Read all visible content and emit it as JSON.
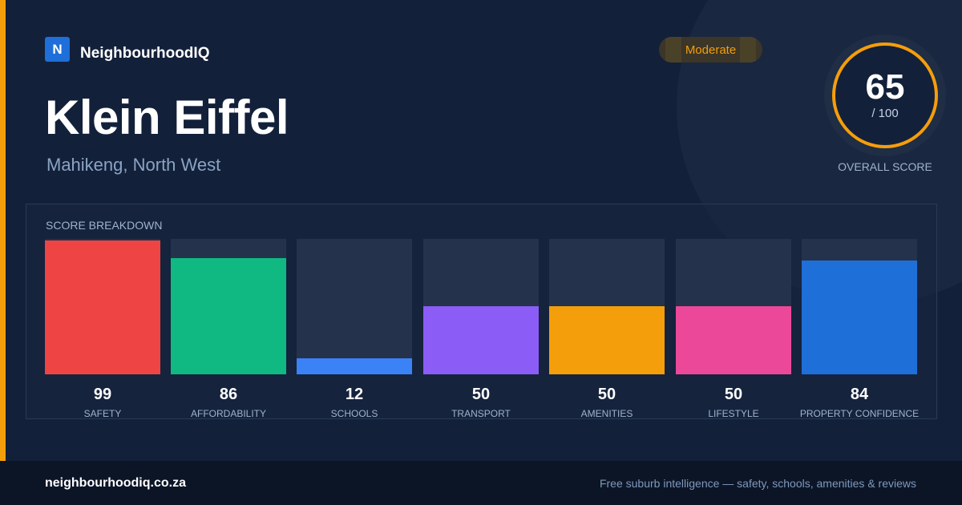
{
  "brand": {
    "logo_letter": "N",
    "name": "NeighbourhoodIQ",
    "accent_color": "#f59e0b"
  },
  "place": {
    "name": "Klein Eiffel",
    "location": "Mahikeng, North West"
  },
  "rating": {
    "badge": "Moderate",
    "score": "65",
    "max": "/ 100",
    "label": "OVERALL SCORE",
    "ring_color": "#f59e0b"
  },
  "breakdown": {
    "title": "SCORE BREAKDOWN",
    "items": [
      {
        "label": "SAFETY",
        "value": "99",
        "color": "#ef4444"
      },
      {
        "label": "AFFORDABILITY",
        "value": "86",
        "color": "#10b981"
      },
      {
        "label": "SCHOOLS",
        "value": "12",
        "color": "#3b82f6"
      },
      {
        "label": "TRANSPORT",
        "value": "50",
        "color": "#8b5cf6"
      },
      {
        "label": "AMENITIES",
        "value": "50",
        "color": "#f59e0b"
      },
      {
        "label": "LIFESTYLE",
        "value": "50",
        "color": "#ec4899"
      },
      {
        "label": "PROPERTY CONFIDENCE",
        "value": "84",
        "color": "#1f6fd8"
      }
    ]
  },
  "footer": {
    "url": "neighbourhoodiq.co.za",
    "tagline": "Free suburb intelligence — safety, schools, amenities & reviews"
  }
}
